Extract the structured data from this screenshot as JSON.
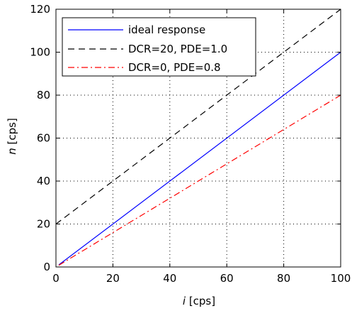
{
  "chart_data": {
    "type": "line",
    "xlabel_var": "i",
    "xlabel_unit": " [cps]",
    "ylabel_var": "n",
    "ylabel_unit": " [cps]",
    "xlim": [
      0,
      100
    ],
    "ylim": [
      0,
      120
    ],
    "xticks": [
      0,
      20,
      40,
      60,
      80,
      100
    ],
    "yticks": [
      0,
      20,
      40,
      60,
      80,
      100,
      120
    ],
    "grid": true,
    "legend_position": "top-left",
    "series": [
      {
        "name": "ideal response",
        "color": "#0000ff",
        "dash": "solid",
        "x": [
          1,
          100
        ],
        "y": [
          1,
          100
        ]
      },
      {
        "name": "DCR=20, PDE=1.0",
        "color": "#000000",
        "dash": "dashed",
        "x": [
          0,
          100
        ],
        "y": [
          20,
          120
        ]
      },
      {
        "name": "DCR=0, PDE=0.8",
        "color": "#ff0000",
        "dash": "dashdot",
        "x": [
          1,
          100
        ],
        "y": [
          0.8,
          80
        ]
      }
    ]
  }
}
